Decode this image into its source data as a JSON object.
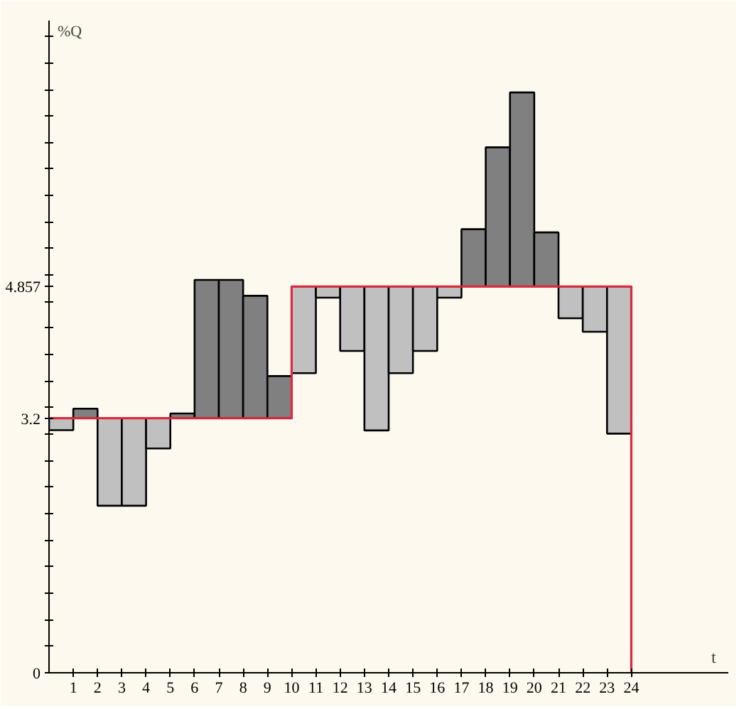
{
  "chart_data": {
    "type": "bar",
    "xlabel": "t",
    "ylabel": "%Q",
    "xlim": [
      0,
      28
    ],
    "xticks": [
      1,
      2,
      3,
      4,
      5,
      6,
      7,
      8,
      9,
      10,
      11,
      12,
      13,
      14,
      15,
      16,
      17,
      18,
      19,
      20,
      21,
      22,
      23,
      24
    ],
    "ylim": [
      0,
      8.2
    ],
    "yticks": [
      {
        "value": 0,
        "label": "0"
      },
      {
        "value": 0.3333,
        "label": null
      },
      {
        "value": 0.6667,
        "label": null
      },
      {
        "value": 1,
        "label": null
      },
      {
        "value": 1.3333,
        "label": null
      },
      {
        "value": 1.6667,
        "label": null
      },
      {
        "value": 2,
        "label": null
      },
      {
        "value": 2.3333,
        "label": null
      },
      {
        "value": 2.6667,
        "label": null
      },
      {
        "value": 3,
        "label": null
      },
      {
        "value": 3.2,
        "label": "3.2"
      },
      {
        "value": 3.3333,
        "label": null
      },
      {
        "value": 3.6667,
        "label": null
      },
      {
        "value": 4,
        "label": null
      },
      {
        "value": 4.3333,
        "label": null
      },
      {
        "value": 4.6667,
        "label": null
      },
      {
        "value": 4.857,
        "label": "4.857"
      },
      {
        "value": 5,
        "label": null
      },
      {
        "value": 5.3333,
        "label": null
      },
      {
        "value": 5.6667,
        "label": null
      },
      {
        "value": 6,
        "label": null
      },
      {
        "value": 6.3333,
        "label": null
      },
      {
        "value": 6.6667,
        "label": null
      },
      {
        "value": 7,
        "label": null
      },
      {
        "value": 7.3333,
        "label": null
      },
      {
        "value": 7.6667,
        "label": null
      },
      {
        "value": 8,
        "label": null
      }
    ],
    "grid": false,
    "series": [
      {
        "x": [
          0.5,
          1.5,
          2.5,
          3.5,
          4.5,
          5.5,
          6.5,
          7.5,
          8.5,
          9.5,
          10.5,
          11.5,
          12.5,
          13.5,
          14.5,
          15.5,
          16.5,
          17.5,
          18.5,
          19.5,
          20.5,
          21.5,
          22.5,
          23.5
        ],
        "base": [
          3.2,
          3.2,
          3.2,
          3.2,
          3.2,
          3.2,
          3.2,
          3.2,
          3.2,
          3.2,
          4.857,
          4.857,
          4.857,
          4.857,
          4.857,
          4.857,
          4.857,
          4.857,
          4.857,
          4.857,
          4.857,
          4.857,
          4.857,
          4.857
        ],
        "values": [
          -0.15,
          0.12,
          -1.1,
          -1.1,
          -0.38,
          0.06,
          1.74,
          1.74,
          1.54,
          0.53,
          -1.09,
          -0.14,
          -0.81,
          -1.81,
          -1.09,
          -0.81,
          -0.14,
          0.72,
          1.75,
          2.44,
          0.68,
          -0.4,
          -0.57,
          -1.85
        ],
        "colors": [
          "#c0c0c0",
          "#808080",
          "#c0c0c0",
          "#c0c0c0",
          "#c0c0c0",
          "#808080",
          "#808080",
          "#808080",
          "#808080",
          "#808080",
          "#c0c0c0",
          "#c0c0c0",
          "#c0c0c0",
          "#c0c0c0",
          "#c0c0c0",
          "#c0c0c0",
          "#c0c0c0",
          "#808080",
          "#808080",
          "#808080",
          "#808080",
          "#c0c0c0",
          "#c0c0c0",
          "#c0c0c0"
        ]
      },
      {
        "type": "step",
        "x": [
          0,
          10,
          24
        ],
        "values": [
          3.2,
          4.857,
          0
        ],
        "color": "#e0283c"
      }
    ]
  }
}
